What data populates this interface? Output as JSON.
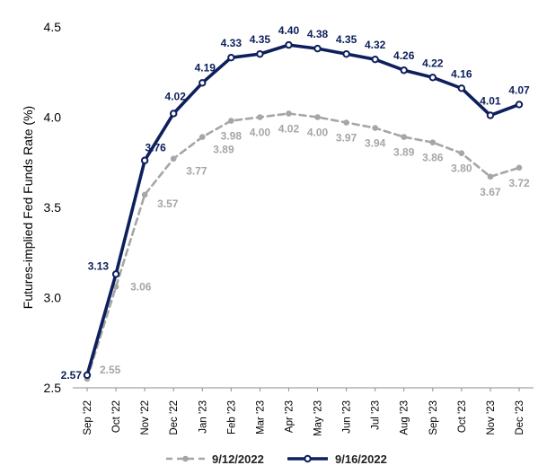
{
  "chart_data": {
    "type": "line",
    "ylabel": "Futures-implied Fed Funds Rate (%)",
    "xlabel": "",
    "ylim": [
      2.5,
      4.5
    ],
    "yticks": [
      "2.5",
      "3.0",
      "3.5",
      "4.0",
      "4.5"
    ],
    "categories": [
      "Sep '22",
      "Oct '22",
      "Nov '22",
      "Dec '22",
      "Jan '23",
      "Feb '23",
      "Mar '23",
      "Apr '23",
      "May '23",
      "Jun '23",
      "Jul '23",
      "Aug '23",
      "Sep '23",
      "Oct '23",
      "Nov '23",
      "Dec '23"
    ],
    "series": [
      {
        "name": "9/12/2022",
        "style": "dashed",
        "color": "#a6a6a6",
        "values": [
          2.55,
          3.06,
          3.57,
          3.77,
          3.89,
          3.98,
          4.0,
          4.02,
          4.0,
          3.97,
          3.94,
          3.89,
          3.86,
          3.8,
          3.67,
          3.72
        ],
        "labels": [
          "2.55",
          "3.06",
          "3.57",
          "3.77",
          "3.89",
          "3.98",
          "4.00",
          "4.02",
          "4.00",
          "3.97",
          "3.94",
          "3.89",
          "3.86",
          "3.80",
          "3.67",
          "3.72"
        ]
      },
      {
        "name": "9/16/2022",
        "style": "solid",
        "color": "#0d1f5c",
        "values": [
          2.57,
          3.13,
          3.76,
          4.02,
          4.19,
          4.33,
          4.35,
          4.4,
          4.38,
          4.35,
          4.32,
          4.26,
          4.22,
          4.16,
          4.01,
          4.07
        ],
        "labels": [
          "2.57",
          "3.13",
          "3.76",
          "4.02",
          "4.19",
          "4.33",
          "4.35",
          "4.40",
          "4.38",
          "4.35",
          "4.32",
          "4.26",
          "4.22",
          "4.16",
          "4.01",
          "4.07"
        ]
      }
    ],
    "legend": "bottom",
    "grid": false
  }
}
